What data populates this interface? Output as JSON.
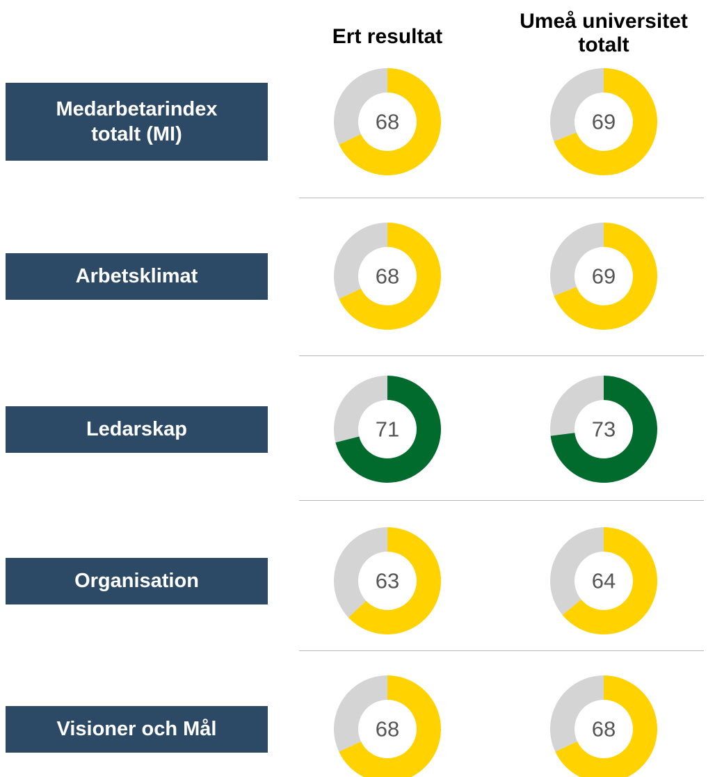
{
  "chart_data": {
    "type": "donut",
    "columns": [
      "Ert resultat",
      "Umeå universitet totalt"
    ],
    "vmax": 100,
    "track_color": "#d4d4d4",
    "rows": [
      {
        "label": "Medarbetarindex totalt (MI)",
        "values": [
          68,
          69
        ],
        "color": "#ffd200"
      },
      {
        "label": "Arbetsklimat",
        "values": [
          68,
          69
        ],
        "color": "#ffd200"
      },
      {
        "label": "Ledarskap",
        "values": [
          71,
          73
        ],
        "color": "#006b2d"
      },
      {
        "label": "Organisation",
        "values": [
          63,
          64
        ],
        "color": "#ffd200"
      },
      {
        "label": "Visioner och Mål",
        "values": [
          68,
          68
        ],
        "color": "#ffd200"
      }
    ]
  }
}
